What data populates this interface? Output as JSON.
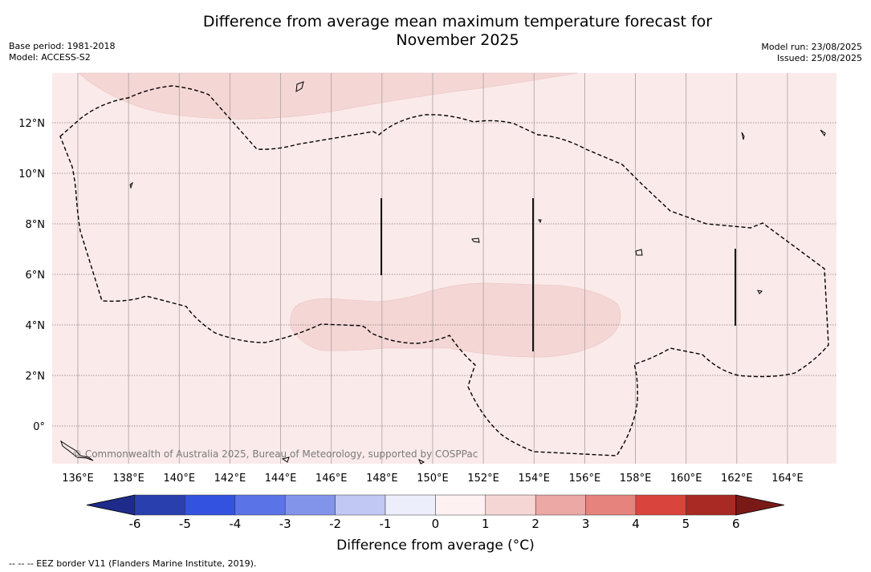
{
  "title_line1": "Difference from average mean maximum temperature forecast for",
  "title_line2": "November 2025",
  "base_period": "Base period: 1981-2018",
  "model": "Model: ACCESS-S2",
  "model_run": "Model run: 23/08/2025",
  "issued": "Issued: 25/08/2025",
  "copyright": "© Commonwealth of Australia 2025, Bureau of Meteorology, supported by COSPPac",
  "colorbar_title": "Difference from average (°C)",
  "footnote": "--  --  -- EEZ border V11 (Flanders Marine Institute, 2019).",
  "lon_labels": [
    "136°E",
    "138°E",
    "140°E",
    "142°E",
    "144°E",
    "146°E",
    "148°E",
    "150°E",
    "152°E",
    "154°E",
    "156°E",
    "158°E",
    "160°E",
    "162°E",
    "164°E"
  ],
  "lon_values": [
    136,
    138,
    140,
    142,
    144,
    146,
    148,
    150,
    152,
    154,
    156,
    158,
    160,
    162,
    164
  ],
  "lat_labels": [
    "12°N",
    "10°N",
    "8°N",
    "6°N",
    "4°N",
    "2°N",
    "0°"
  ],
  "lat_values": [
    12,
    10,
    8,
    6,
    4,
    2,
    0
  ],
  "colorbar": {
    "ticks": [
      "-6",
      "-5",
      "-4",
      "-3",
      "-2",
      "-1",
      "0",
      "1",
      "2",
      "3",
      "4",
      "5",
      "6"
    ],
    "colors": [
      "#2a3fae",
      "#3352e0",
      "#5a73e6",
      "#8294ea",
      "#c1c8f4",
      "#eceefb",
      "#fdf1f1",
      "#f6d6d4",
      "#eba8a4",
      "#e6837d",
      "#d9453d",
      "#a92a24"
    ],
    "under_color": "#1e2b8a",
    "over_color": "#7a1a17"
  },
  "map_colors": {
    "background": "#fbeaea",
    "anomaly_1_2": "#f4d6d5"
  }
}
